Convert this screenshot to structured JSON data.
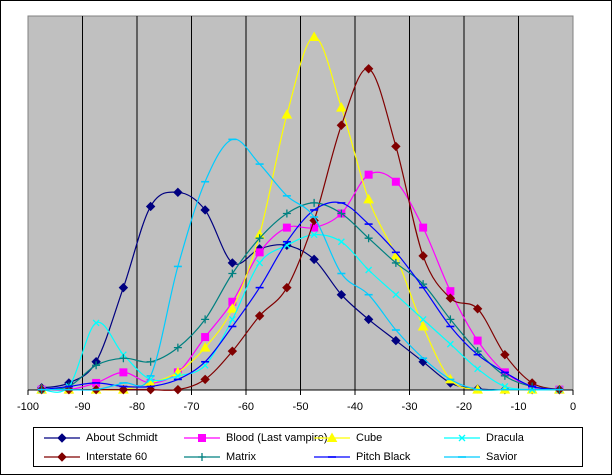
{
  "chart_data": {
    "type": "line",
    "title": "",
    "xlabel": "",
    "ylabel": "",
    "xlim": [
      -100,
      0
    ],
    "ylim": [
      0,
      1
    ],
    "x_ticks": [
      "-100",
      "-90",
      "-80",
      "-70",
      "-60",
      "-50",
      "-40",
      "-30",
      "-20",
      "-10",
      "0"
    ],
    "grid": "vertical",
    "plot_background": "#c0c0c0",
    "legend_position": "bottom",
    "x": [
      -97.5,
      -92.5,
      -87.5,
      -82.5,
      -77.5,
      -72.5,
      -67.5,
      -62.5,
      -57.5,
      -52.5,
      -47.5,
      -42.5,
      -37.5,
      -32.5,
      -27.5,
      -22.5,
      -17.5,
      -12.5,
      -7.5,
      -2.5
    ],
    "series": [
      {
        "name": "About Schmidt",
        "color": "#000080",
        "marker": "diamond",
        "values": [
          0.006,
          0.02,
          0.08,
          0.29,
          0.52,
          0.56,
          0.51,
          0.36,
          0.4,
          0.41,
          0.37,
          0.27,
          0.2,
          0.14,
          0.08,
          0.02,
          0.003,
          0.001,
          0.001,
          0.001
        ]
      },
      {
        "name": "Blood (Last vampire)",
        "color": "#ff00ff",
        "marker": "square",
        "values": [
          0.001,
          0.001,
          0.02,
          0.05,
          0.02,
          0.05,
          0.15,
          0.25,
          0.39,
          0.46,
          0.46,
          0.5,
          0.61,
          0.59,
          0.46,
          0.28,
          0.14,
          0.05,
          0.01,
          0.001
        ]
      },
      {
        "name": "Cube",
        "color": "#ffff00",
        "marker": "triangle",
        "values": [
          0.001,
          0.001,
          0.001,
          0.001,
          0.02,
          0.05,
          0.12,
          0.23,
          0.44,
          0.78,
          1.0,
          0.8,
          0.54,
          0.38,
          0.18,
          0.03,
          0.001,
          0.001,
          0.001,
          0.001
        ]
      },
      {
        "name": "Dracula",
        "color": "#00ffff",
        "marker": "x",
        "values": [
          0.001,
          0.01,
          0.19,
          0.1,
          0.03,
          0.04,
          0.07,
          0.2,
          0.36,
          0.41,
          0.44,
          0.42,
          0.34,
          0.27,
          0.2,
          0.13,
          0.06,
          0.01,
          0.001,
          0.001
        ]
      },
      {
        "name": "Interstate 60",
        "color": "#800000",
        "marker": "diamond",
        "values": [
          0.001,
          0.001,
          0.001,
          0.001,
          0.001,
          0.001,
          0.03,
          0.11,
          0.21,
          0.29,
          0.48,
          0.75,
          0.91,
          0.69,
          0.38,
          0.26,
          0.23,
          0.1,
          0.02,
          0.001
        ]
      },
      {
        "name": "Matrix",
        "color": "#008080",
        "marker": "plus",
        "values": [
          0.001,
          0.01,
          0.07,
          0.09,
          0.08,
          0.12,
          0.2,
          0.33,
          0.43,
          0.5,
          0.53,
          0.5,
          0.43,
          0.36,
          0.3,
          0.2,
          0.11,
          0.04,
          0.01,
          0.001
        ]
      },
      {
        "name": "Pitch Black",
        "color": "#0000ff",
        "marker": "dash",
        "values": [
          0.001,
          0.01,
          0.02,
          0.01,
          0.01,
          0.03,
          0.08,
          0.18,
          0.29,
          0.42,
          0.51,
          0.53,
          0.47,
          0.39,
          0.29,
          0.18,
          0.1,
          0.05,
          0.01,
          0.001
        ]
      },
      {
        "name": "Savior",
        "color": "#00ccff",
        "marker": "dash",
        "values": [
          0.001,
          0.001,
          0.001,
          0.02,
          0.04,
          0.35,
          0.59,
          0.71,
          0.64,
          0.55,
          0.49,
          0.33,
          0.27,
          0.17,
          0.09,
          0.03,
          0.001,
          0.001,
          0.001,
          0.001
        ]
      }
    ]
  }
}
